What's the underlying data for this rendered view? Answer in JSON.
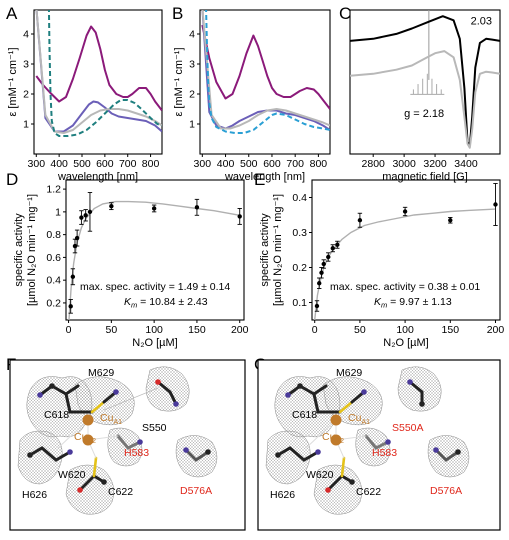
{
  "panels": {
    "A": {
      "letter": "A"
    },
    "B": {
      "letter": "B"
    },
    "C": {
      "letter": "C"
    },
    "D": {
      "letter": "D"
    },
    "E": {
      "letter": "E"
    },
    "F": {
      "letter": "F"
    },
    "G": {
      "letter": "G"
    }
  },
  "colors": {
    "purple": "#8b1a7a",
    "blue": "#6b5fb8",
    "gray": "#b8b8b8",
    "teal_dash": "#1f7f7f",
    "cyan_dash": "#2a9fd4",
    "green_dash": "#2f8f3f",
    "mesh": "#9a9a9a",
    "copper": "#c07a2a",
    "sulfur": "#e4c21a",
    "nitrogen": "#4a3a9a",
    "oxygen": "#d62a2a",
    "mutant_label": "#e0281c"
  },
  "chart_data": [
    {
      "id": "A",
      "type": "line",
      "xlabel": "wavelength [nm]",
      "ylabel": "ε [mM⁻¹ cm⁻¹]",
      "xlim": [
        290,
        850
      ],
      "ylim": [
        0,
        4.8
      ],
      "xticks": [
        300,
        400,
        500,
        600,
        700,
        800
      ],
      "yticks": [
        1,
        2,
        3,
        4
      ],
      "series": [
        {
          "color_key": "purple",
          "dash": false,
          "x": [
            300,
            330,
            360,
            400,
            430,
            460,
            490,
            520,
            540,
            560,
            580,
            600,
            620,
            650,
            680,
            700,
            720,
            750,
            780,
            800,
            820,
            850
          ],
          "y": [
            2.6,
            2.3,
            2.05,
            1.75,
            1.9,
            2.5,
            3.2,
            3.95,
            4.25,
            4.05,
            3.5,
            2.8,
            2.3,
            2.0,
            1.9,
            1.9,
            2.0,
            2.2,
            2.2,
            2.0,
            1.75,
            1.45
          ]
        },
        {
          "color_key": "blue",
          "dash": false,
          "x": [
            300,
            340,
            380,
            420,
            460,
            500,
            530,
            550,
            570,
            600,
            630,
            660,
            700,
            740,
            780,
            820,
            850
          ],
          "y": [
            4.9,
            1.2,
            0.75,
            0.75,
            0.95,
            1.35,
            1.65,
            1.75,
            1.72,
            1.55,
            1.35,
            1.25,
            1.2,
            1.15,
            1.1,
            0.95,
            0.75
          ]
        },
        {
          "color_key": "gray",
          "dash": false,
          "x": [
            300,
            340,
            380,
            420,
            460,
            500,
            540,
            580,
            620,
            660,
            700,
            740,
            780,
            820,
            850
          ],
          "y": [
            4.9,
            1.3,
            0.75,
            0.7,
            0.8,
            1.05,
            1.3,
            1.45,
            1.5,
            1.5,
            1.45,
            1.35,
            1.25,
            1.1,
            0.95
          ]
        },
        {
          "color_key": "teal_dash",
          "dash": true,
          "x": [
            355,
            358,
            362,
            368,
            380,
            400,
            440,
            480,
            520,
            560,
            600,
            640,
            670,
            700,
            730,
            760,
            800,
            830,
            850
          ],
          "y": [
            4.9,
            3.5,
            2.0,
            1.1,
            0.7,
            0.6,
            0.6,
            0.65,
            0.8,
            1.05,
            1.35,
            1.65,
            1.8,
            1.8,
            1.7,
            1.5,
            1.2,
            1.0,
            0.95
          ]
        }
      ]
    },
    {
      "id": "B",
      "type": "line",
      "xlabel": "wavelength [nm]",
      "ylabel": "ε [mM⁻¹ cm⁻¹]",
      "xlim": [
        290,
        850
      ],
      "ylim": [
        0,
        4.8
      ],
      "xticks": [
        300,
        400,
        500,
        600,
        700,
        800
      ],
      "yticks": [
        1,
        2,
        3,
        4
      ],
      "series": [
        {
          "color_key": "purple",
          "dash": false,
          "x": [
            300,
            330,
            360,
            400,
            430,
            460,
            490,
            520,
            540,
            560,
            580,
            600,
            620,
            650,
            680,
            700,
            720,
            750,
            780,
            800,
            820,
            850
          ],
          "y": [
            4.3,
            3.2,
            2.4,
            1.85,
            2.0,
            2.6,
            3.35,
            3.95,
            3.6,
            3.1,
            2.6,
            2.2,
            2.0,
            1.9,
            1.9,
            2.0,
            2.1,
            2.2,
            2.15,
            2.0,
            1.8,
            1.5
          ]
        },
        {
          "color_key": "blue",
          "dash": false,
          "x": [
            300,
            330,
            360,
            400,
            430,
            460,
            500,
            540,
            580,
            620,
            660,
            700,
            740,
            780,
            820,
            850
          ],
          "y": [
            4.9,
            1.4,
            0.95,
            0.85,
            0.95,
            1.1,
            1.25,
            1.4,
            1.45,
            1.45,
            1.35,
            1.3,
            1.2,
            1.1,
            0.95,
            0.8
          ]
        },
        {
          "color_key": "gray",
          "dash": false,
          "x": [
            300,
            340,
            380,
            420,
            460,
            500,
            540,
            580,
            620,
            660,
            700,
            740,
            780,
            820,
            850
          ],
          "y": [
            4.9,
            1.3,
            0.85,
            0.85,
            0.95,
            1.1,
            1.3,
            1.45,
            1.5,
            1.45,
            1.35,
            1.25,
            1.15,
            1.05,
            0.95
          ]
        },
        {
          "color_key": "cyan_dash",
          "dash": true,
          "x": [
            316,
            320,
            325,
            330,
            340,
            360,
            400,
            440,
            480,
            520,
            560,
            600,
            620,
            660,
            700,
            740,
            780,
            820,
            850
          ],
          "y": [
            4.9,
            3.6,
            2.4,
            1.7,
            1.2,
            0.9,
            0.75,
            0.7,
            0.7,
            0.8,
            1.05,
            1.3,
            1.35,
            1.3,
            1.15,
            1.0,
            0.9,
            0.85,
            0.8
          ]
        }
      ]
    },
    {
      "id": "C",
      "type": "line",
      "xlabel": "magnetic field [G]",
      "ylabel": "",
      "xlim": [
        2650,
        3620
      ],
      "ylim": [
        -2.2,
        1.3
      ],
      "xticks": [
        2800,
        3000,
        3200,
        3400
      ],
      "annotations": [
        "2.03",
        "g = 2.18"
      ],
      "series": [
        {
          "color_key": "black",
          "dash": false,
          "x": [
            2650,
            2800,
            2950,
            3050,
            3150,
            3250,
            3320,
            3360,
            3390,
            3410,
            3425,
            3440,
            3460,
            3490,
            3530,
            3570,
            3620
          ],
          "y": [
            0.55,
            0.6,
            0.72,
            0.85,
            1.0,
            1.15,
            1.05,
            0.6,
            -0.6,
            -1.9,
            -2.0,
            -1.3,
            -0.1,
            0.5,
            0.6,
            0.58,
            0.55
          ]
        },
        {
          "color_key": "gray",
          "dash": false,
          "x": [
            2650,
            2800,
            2950,
            3050,
            3100,
            3150,
            3200,
            3260,
            3320,
            3360,
            3390,
            3410,
            3425,
            3440,
            3460,
            3490,
            3530,
            3570,
            3620
          ],
          "y": [
            -0.3,
            -0.25,
            -0.15,
            -0.05,
            0.05,
            0.15,
            0.25,
            0.3,
            0.15,
            -0.4,
            -1.3,
            -1.95,
            -2.05,
            -1.6,
            -0.7,
            -0.25,
            -0.2,
            -0.22,
            -0.25
          ]
        }
      ]
    },
    {
      "id": "D",
      "type": "scatter",
      "xlabel": "N₂O [µM]",
      "ylabel_line1": "specific activity",
      "ylabel_line2": "[µmol N₂O min⁻¹ mg⁻¹]",
      "xlim": [
        -3,
        205
      ],
      "ylim": [
        0.05,
        1.28
      ],
      "xticks": [
        0,
        50,
        100,
        150,
        200
      ],
      "yticks": [
        0.2,
        0.4,
        0.6,
        0.8,
        1.0,
        1.2
      ],
      "ytick_labels": [
        "0.2",
        "0.4",
        "0.6",
        "0.8",
        "1",
        "1.2"
      ],
      "points": [
        {
          "x": 2.5,
          "y": 0.17,
          "err": 0.06
        },
        {
          "x": 5,
          "y": 0.43,
          "err": 0.07
        },
        {
          "x": 7.5,
          "y": 0.7,
          "err": 0.06
        },
        {
          "x": 10,
          "y": 0.77,
          "err": 0.07
        },
        {
          "x": 15,
          "y": 0.95,
          "err": 0.06
        },
        {
          "x": 20,
          "y": 0.97,
          "err": 0.05
        },
        {
          "x": 25,
          "y": 1.0,
          "err": 0.17
        },
        {
          "x": 50,
          "y": 1.05,
          "err": 0.03
        },
        {
          "x": 100,
          "y": 1.03,
          "err": 0.03
        },
        {
          "x": 150,
          "y": 1.04,
          "err": 0.07
        },
        {
          "x": 200,
          "y": 0.96,
          "err": 0.07
        }
      ],
      "fit": {
        "x": [
          0,
          3,
          6,
          10,
          15,
          20,
          30,
          40,
          55,
          70,
          90,
          110,
          130,
          150,
          170,
          200
        ],
        "y": [
          0,
          0.33,
          0.55,
          0.73,
          0.86,
          0.94,
          1.03,
          1.07,
          1.09,
          1.09,
          1.085,
          1.07,
          1.05,
          1.03,
          1.01,
          0.97
        ]
      },
      "annotation_line1": "max. spec. activity = 1.49 ± 0.14",
      "annotation_line2_label": "K",
      "annotation_line2_sub": "m",
      "annotation_line2_value": " = 10.84 ± 2.43"
    },
    {
      "id": "E",
      "type": "scatter",
      "xlabel": "N₂O [µM]",
      "ylabel_line1": "specific activity",
      "ylabel_line2": "[µmol N₂O min⁻¹ mg⁻¹]",
      "xlim": [
        -3,
        205
      ],
      "ylim": [
        0.05,
        0.45
      ],
      "xticks": [
        0,
        50,
        100,
        150,
        200
      ],
      "yticks": [
        0.1,
        0.2,
        0.3,
        0.4
      ],
      "ytick_labels": [
        "0.1",
        "0.2",
        "0.3",
        "0.4"
      ],
      "points": [
        {
          "x": 2.5,
          "y": 0.09,
          "err": 0.015
        },
        {
          "x": 5,
          "y": 0.155,
          "err": 0.015
        },
        {
          "x": 7.5,
          "y": 0.185,
          "err": 0.015
        },
        {
          "x": 10,
          "y": 0.21,
          "err": 0.012
        },
        {
          "x": 15,
          "y": 0.23,
          "err": 0.012
        },
        {
          "x": 20,
          "y": 0.255,
          "err": 0.01
        },
        {
          "x": 25,
          "y": 0.265,
          "err": 0.01
        },
        {
          "x": 50,
          "y": 0.335,
          "err": 0.02
        },
        {
          "x": 100,
          "y": 0.36,
          "err": 0.012
        },
        {
          "x": 150,
          "y": 0.335,
          "err": 0.008
        },
        {
          "x": 200,
          "y": 0.38,
          "err": 0.06
        }
      ],
      "fit": {
        "x": [
          0,
          3,
          6,
          10,
          15,
          20,
          30,
          40,
          55,
          70,
          90,
          110,
          130,
          150,
          170,
          200
        ],
        "y": [
          0.05,
          0.12,
          0.16,
          0.2,
          0.23,
          0.25,
          0.28,
          0.3,
          0.32,
          0.33,
          0.34,
          0.35,
          0.355,
          0.36,
          0.363,
          0.367
        ]
      },
      "annotation_line1": "max. spec. activity = 0.38 ± 0.01",
      "annotation_line2_label": "K",
      "annotation_line2_sub": "m",
      "annotation_line2_value": " = 9.97 ± 1.13"
    }
  ],
  "structures": {
    "F": {
      "residue_labels": {
        "M629": "M629",
        "C618": "C618",
        "CuA1": "Cu",
        "CuA1_sub": "A1",
        "CuA2": "Cu",
        "CuA2_sub": "A2",
        "S550": "S550",
        "H583": "H583",
        "H626": "H626",
        "W620": "W620",
        "C622": "C622",
        "D576A": "D576A"
      }
    },
    "G": {
      "residue_labels": {
        "M629": "M629",
        "C618": "C618",
        "CuA1": "Cu",
        "CuA1_sub": "A1",
        "CuA2": "Cu",
        "CuA2_sub": "A2",
        "S550A": "S550A",
        "H583": "H583",
        "H626": "H626",
        "W620": "W620",
        "C622": "C622",
        "D576A": "D576A"
      }
    }
  }
}
